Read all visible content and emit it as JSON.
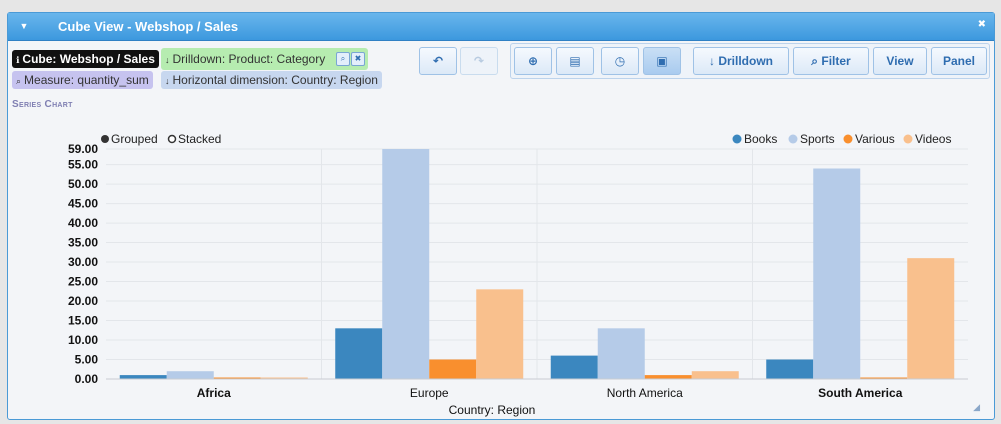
{
  "window": {
    "title": "Cube View - Webshop / Sales",
    "toggle_icon": "chevron-down-icon",
    "close_icon": "close-icon"
  },
  "breadcrumbs": {
    "cube": "Cube: Webshop / Sales",
    "drilldown": "Drilldown: Product: Category",
    "measure": "Measure: quantity_sum",
    "horizontal_dimension": "Horizontal dimension: Country: Region"
  },
  "toolbar": {
    "undo_icon": "undo-icon",
    "redo_icon": "redo-icon",
    "add_icon": "add-icon",
    "clipboard_icon": "clipboard-icon",
    "clock_icon": "clock-icon",
    "image_icon": "image-icon",
    "drilldown_label": "Drilldown",
    "filter_label": "Filter",
    "view_label": "View",
    "panel_label": "Panel"
  },
  "section_title": "Series Chart",
  "chart_controls": {
    "grouped_label": "Grouped",
    "stacked_label": "Stacked",
    "selected": "Grouped"
  },
  "colors": {
    "Books": "#3b87bf",
    "Sports": "#b5cbe8",
    "Various": "#f98f2e",
    "Videos": "#f9c08d"
  },
  "chart_data": {
    "type": "bar",
    "categories": [
      "Africa",
      "Europe",
      "North America",
      "South America"
    ],
    "bold_categories": [
      "Africa",
      "South America"
    ],
    "series": [
      {
        "name": "Books",
        "values": [
          1,
          13,
          6,
          5
        ]
      },
      {
        "name": "Sports",
        "values": [
          2,
          59,
          13,
          54
        ]
      },
      {
        "name": "Various",
        "values": [
          0,
          5,
          1,
          0
        ]
      },
      {
        "name": "Videos",
        "values": [
          0,
          23,
          2,
          31
        ]
      }
    ],
    "xlabel": "Country: Region",
    "ylabel": "",
    "ylim": [
      0,
      59
    ],
    "yticks": [
      "0.00",
      "5.00",
      "10.00",
      "15.00",
      "20.00",
      "25.00",
      "30.00",
      "35.00",
      "40.00",
      "45.00",
      "50.00",
      "55.00",
      "59.00"
    ],
    "grid": true,
    "legend_position": "top-right"
  }
}
